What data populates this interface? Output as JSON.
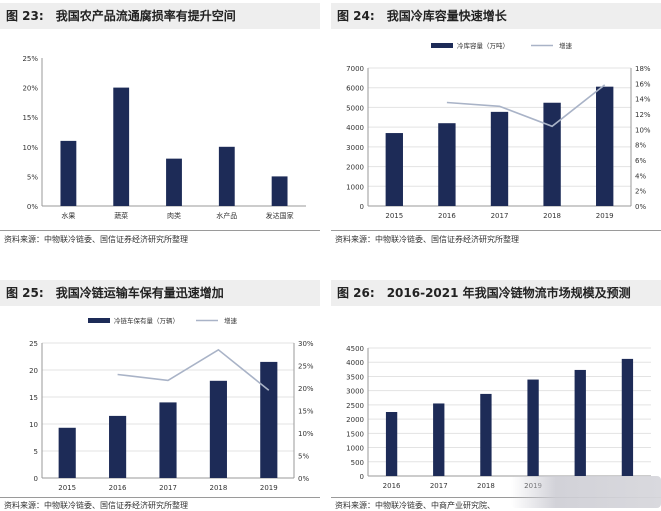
{
  "panels": [
    {
      "label": "图 23:",
      "title": "我国农产品流通腐损率有提升空间",
      "source": "资料来源：中物联冷链委、国信证券经济研究所整理"
    },
    {
      "label": "图 24:",
      "title": "我国冷库容量快速增长",
      "source": "资料来源：中物联冷链委、国信证券经济研究所整理"
    },
    {
      "label": "图 25:",
      "title": "我国冷链运输车保有量迅速增加",
      "source": "资料来源：中物联冷链委、国信证券经济研究所整理"
    },
    {
      "label": "图 26:",
      "title": "2016-2021 年我国冷链物流市场规模及预测",
      "source": "资料来源：中物联冷链委、中商产业研究院、"
    }
  ],
  "chart_data": [
    {
      "type": "bar",
      "categories": [
        "水果",
        "蔬菜",
        "肉类",
        "水产品",
        "发达国家"
      ],
      "values": [
        11,
        20,
        8,
        10,
        5
      ],
      "ylim": [
        0,
        25
      ],
      "yticks": [
        "0%",
        "5%",
        "10%",
        "15%",
        "20%",
        "25%"
      ],
      "bar_color": "#1d2b57",
      "grid": false
    },
    {
      "type": "bar",
      "categories": [
        "2015",
        "2016",
        "2017",
        "2018",
        "2019"
      ],
      "series": [
        {
          "name": "冷库容量（万吨）",
          "type": "bar",
          "values": [
            3700,
            4200,
            4775,
            5238,
            6053
          ],
          "color": "#1d2b57"
        },
        {
          "name": "增速",
          "type": "line",
          "axis": "right",
          "values": [
            null,
            13.5,
            13.0,
            10.4,
            15.8
          ],
          "color": "#a9b3c7"
        }
      ],
      "ylim": [
        0,
        7000
      ],
      "yticks": [
        "0",
        "1000",
        "2000",
        "3000",
        "4000",
        "5000",
        "6000",
        "7000"
      ],
      "y2lim": [
        0,
        18
      ],
      "y2ticks": [
        "0%",
        "2%",
        "4%",
        "6%",
        "8%",
        "10%",
        "12%",
        "14%",
        "16%",
        "18%"
      ],
      "legend": "top"
    },
    {
      "type": "bar",
      "categories": [
        "2015",
        "2016",
        "2017",
        "2018",
        "2019"
      ],
      "series": [
        {
          "name": "冷链车保有量（万辆）",
          "type": "bar",
          "values": [
            9.3,
            11.5,
            14.0,
            18.0,
            21.5
          ],
          "color": "#1d2b57"
        },
        {
          "name": "增速",
          "type": "line",
          "axis": "right",
          "values": [
            null,
            23.0,
            21.7,
            28.5,
            19.5
          ],
          "color": "#a9b3c7"
        }
      ],
      "ylim": [
        0,
        25
      ],
      "yticks": [
        "0",
        "5",
        "10",
        "15",
        "20",
        "25"
      ],
      "y2lim": [
        0,
        30
      ],
      "y2ticks": [
        "0%",
        "5%",
        "10%",
        "15%",
        "20%",
        "25%",
        "30%"
      ],
      "legend": "top"
    },
    {
      "type": "bar",
      "categories": [
        "2016",
        "2017",
        "2018",
        "2019",
        "2020",
        "2021"
      ],
      "values": [
        2250,
        2550,
        2886,
        3391,
        3729,
        4117
      ],
      "ylim": [
        0,
        4500
      ],
      "yticks": [
        "0",
        "500",
        "1000",
        "1500",
        "2000",
        "2500",
        "3000",
        "3500",
        "4000",
        "4500"
      ],
      "xlabels_shown": [
        "2016",
        "2017",
        "2018",
        "2019"
      ],
      "bar_color": "#1d2b57",
      "grid": true
    }
  ]
}
